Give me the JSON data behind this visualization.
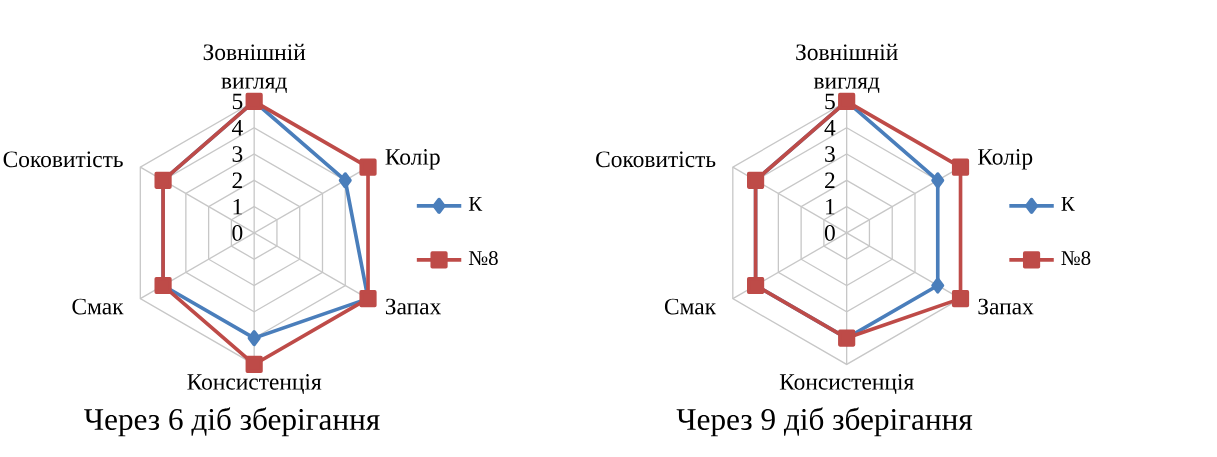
{
  "chart_data": [
    {
      "type": "radar",
      "title": "Через 6 діб зберігання",
      "categories": [
        "Зовнішній вигляд",
        "Колір",
        "Запах",
        "Консистенція",
        "Смак",
        "Соковитість"
      ],
      "ylim": [
        0,
        5
      ],
      "yticks": [
        0,
        1,
        2,
        3,
        4,
        5
      ],
      "grid": true,
      "legend": "right",
      "series": [
        {
          "name": "К",
          "color": "#4a7ebb",
          "marker": "diamond",
          "values": [
            5,
            4,
            5,
            4,
            4,
            4
          ]
        },
        {
          "name": "№8",
          "color": "#be4b48",
          "marker": "square",
          "values": [
            5,
            5,
            5,
            5,
            4,
            4
          ]
        }
      ]
    },
    {
      "type": "radar",
      "title": "Через 9 діб зберігання",
      "categories": [
        "Зовнішній вигляд",
        "Колір",
        "Запах",
        "Консистенція",
        "Смак",
        "Соковитість"
      ],
      "ylim": [
        0,
        5
      ],
      "yticks": [
        0,
        1,
        2,
        3,
        4,
        5
      ],
      "grid": true,
      "legend": "right",
      "series": [
        {
          "name": "К",
          "color": "#4a7ebb",
          "marker": "diamond",
          "values": [
            5,
            4,
            4,
            4,
            4,
            4
          ]
        },
        {
          "name": "№8",
          "color": "#be4b48",
          "marker": "square",
          "values": [
            5,
            5,
            5,
            4,
            4,
            4
          ]
        }
      ]
    }
  ]
}
